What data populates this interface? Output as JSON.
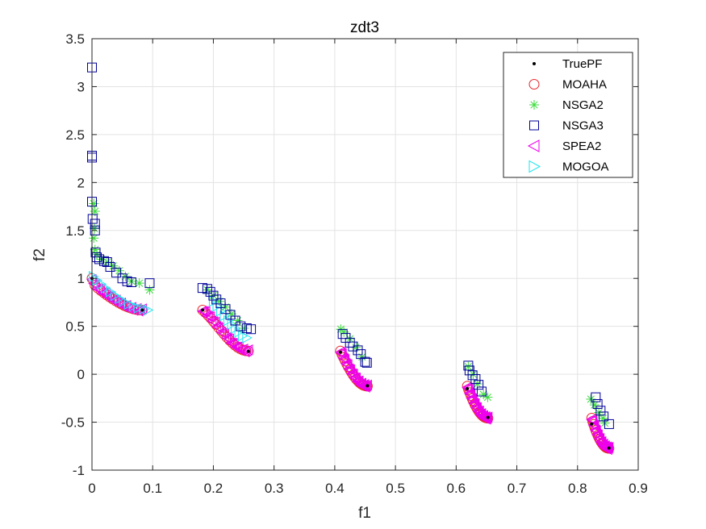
{
  "chart_data": {
    "type": "scatter",
    "title": "zdt3",
    "xlabel": "f1",
    "ylabel": "f2",
    "xlim": [
      0,
      0.9
    ],
    "ylim": [
      -1,
      3.5
    ],
    "grid": true,
    "legend_position": "top-right",
    "xticks": [
      "0",
      "0.1",
      "0.2",
      "0.3",
      "0.4",
      "0.5",
      "0.6",
      "0.7",
      "0.8",
      "0.9"
    ],
    "xtick_values": [
      0,
      0.1,
      0.2,
      0.3,
      0.4,
      0.5,
      0.6,
      0.7,
      0.8,
      0.9
    ],
    "yticks": [
      "-1",
      "-0.5",
      "0",
      "0.5",
      "1",
      "1.5",
      "2",
      "2.5",
      "3",
      "3.5"
    ],
    "ytick_values": [
      -1,
      -0.5,
      0,
      0.5,
      1,
      1.5,
      2,
      2.5,
      3,
      3.5
    ],
    "series": [
      {
        "name": "TruePF",
        "marker": "dot",
        "color": "#000000",
        "points": [
          [
            0.0,
            1.0
          ],
          [
            0.083,
            0.67
          ],
          [
            0.1822,
            0.67
          ],
          [
            0.2578,
            0.24
          ],
          [
            0.4093,
            0.23
          ],
          [
            0.4539,
            -0.12
          ],
          [
            0.6184,
            -0.15
          ],
          [
            0.6525,
            -0.45
          ],
          [
            0.8233,
            -0.52
          ],
          [
            0.8518,
            -0.77
          ]
        ]
      },
      {
        "name": "MOAHA",
        "marker": "circle",
        "color": "#e8262b",
        "segments": [
          [
            0.0,
            0.083
          ],
          [
            0.1822,
            0.2578
          ],
          [
            0.4093,
            0.4539
          ],
          [
            0.6184,
            0.6525
          ],
          [
            0.8233,
            0.8518
          ]
        ],
        "count_per_segment": 18
      },
      {
        "name": "NSGA2",
        "marker": "star",
        "color": "#3ddc3d",
        "points": [
          [
            0.003,
            1.78
          ],
          [
            0.005,
            1.7
          ],
          [
            0.004,
            1.52
          ],
          [
            0.003,
            1.42
          ],
          [
            0.005,
            1.3
          ],
          [
            0.008,
            1.25
          ],
          [
            0.015,
            1.2
          ],
          [
            0.025,
            1.17
          ],
          [
            0.035,
            1.13
          ],
          [
            0.045,
            1.08
          ],
          [
            0.055,
            1.02
          ],
          [
            0.065,
            0.97
          ],
          [
            0.078,
            0.95
          ],
          [
            0.095,
            0.88
          ],
          [
            0.19,
            0.88
          ],
          [
            0.2,
            0.82
          ],
          [
            0.21,
            0.76
          ],
          [
            0.22,
            0.7
          ],
          [
            0.23,
            0.63
          ],
          [
            0.24,
            0.56
          ],
          [
            0.25,
            0.48
          ],
          [
            0.41,
            0.47
          ],
          [
            0.415,
            0.44
          ],
          [
            0.425,
            0.37
          ],
          [
            0.435,
            0.28
          ],
          [
            0.445,
            0.18
          ],
          [
            0.62,
            0.08
          ],
          [
            0.628,
            0.0
          ],
          [
            0.635,
            -0.1
          ],
          [
            0.645,
            -0.21
          ],
          [
            0.652,
            -0.24
          ],
          [
            0.822,
            -0.26
          ],
          [
            0.828,
            -0.32
          ],
          [
            0.835,
            -0.4
          ],
          [
            0.842,
            -0.46
          ],
          [
            0.845,
            -0.51
          ]
        ]
      },
      {
        "name": "NSGA3",
        "marker": "square",
        "color": "#000099",
        "points": [
          [
            0.0,
            3.2
          ],
          [
            0.0,
            2.28
          ],
          [
            0.0,
            2.26
          ],
          [
            0.0,
            1.8
          ],
          [
            0.001,
            1.62
          ],
          [
            0.005,
            1.57
          ],
          [
            0.005,
            1.5
          ],
          [
            0.006,
            1.27
          ],
          [
            0.008,
            1.22
          ],
          [
            0.012,
            1.2
          ],
          [
            0.02,
            1.18
          ],
          [
            0.025,
            1.17
          ],
          [
            0.03,
            1.12
          ],
          [
            0.04,
            1.06
          ],
          [
            0.05,
            1.0
          ],
          [
            0.058,
            0.97
          ],
          [
            0.065,
            0.96
          ],
          [
            0.095,
            0.95
          ],
          [
            0.182,
            0.9
          ],
          [
            0.19,
            0.89
          ],
          [
            0.195,
            0.86
          ],
          [
            0.2,
            0.82
          ],
          [
            0.205,
            0.78
          ],
          [
            0.212,
            0.74
          ],
          [
            0.22,
            0.68
          ],
          [
            0.228,
            0.62
          ],
          [
            0.236,
            0.56
          ],
          [
            0.245,
            0.5
          ],
          [
            0.255,
            0.48
          ],
          [
            0.262,
            0.47
          ],
          [
            0.413,
            0.42
          ],
          [
            0.418,
            0.38
          ],
          [
            0.425,
            0.33
          ],
          [
            0.43,
            0.29
          ],
          [
            0.438,
            0.25
          ],
          [
            0.443,
            0.21
          ],
          [
            0.45,
            0.13
          ],
          [
            0.453,
            0.12
          ],
          [
            0.62,
            0.09
          ],
          [
            0.622,
            0.04
          ],
          [
            0.627,
            -0.01
          ],
          [
            0.632,
            -0.05
          ],
          [
            0.637,
            -0.11
          ],
          [
            0.642,
            -0.18
          ],
          [
            0.83,
            -0.24
          ],
          [
            0.833,
            -0.31
          ],
          [
            0.838,
            -0.38
          ],
          [
            0.843,
            -0.44
          ],
          [
            0.852,
            -0.52
          ]
        ]
      },
      {
        "name": "SPEA2",
        "marker": "triangle-left",
        "color": "#ee00ee",
        "segments": [
          [
            0.0,
            0.083
          ],
          [
            0.1822,
            0.2578
          ],
          [
            0.4093,
            0.4539
          ],
          [
            0.6184,
            0.6525
          ],
          [
            0.8233,
            0.8518
          ]
        ],
        "count_per_segment": 30
      },
      {
        "name": "MOGOA",
        "marker": "triangle-right",
        "color": "#22e6f0",
        "points": [
          [
            0.002,
            1.02
          ],
          [
            0.008,
            0.98
          ],
          [
            0.015,
            0.94
          ],
          [
            0.022,
            0.9
          ],
          [
            0.03,
            0.86
          ],
          [
            0.038,
            0.82
          ],
          [
            0.045,
            0.79
          ],
          [
            0.052,
            0.76
          ],
          [
            0.06,
            0.73
          ],
          [
            0.068,
            0.71
          ],
          [
            0.076,
            0.69
          ],
          [
            0.085,
            0.68
          ],
          [
            0.092,
            0.67
          ],
          [
            0.2,
            0.76
          ],
          [
            0.206,
            0.71
          ],
          [
            0.212,
            0.66
          ],
          [
            0.218,
            0.61
          ],
          [
            0.224,
            0.56
          ],
          [
            0.23,
            0.52
          ],
          [
            0.236,
            0.48
          ],
          [
            0.242,
            0.44
          ],
          [
            0.248,
            0.4
          ],
          [
            0.255,
            0.38
          ]
        ]
      }
    ]
  }
}
